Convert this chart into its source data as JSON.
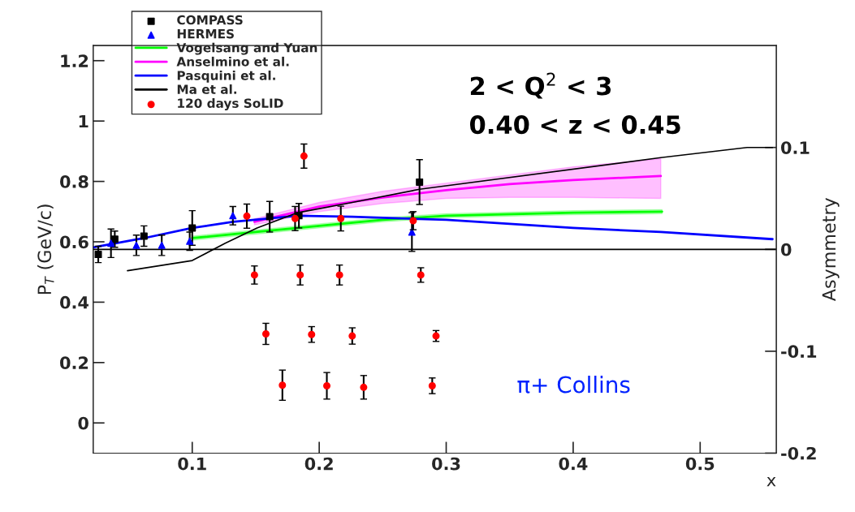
{
  "chart_data": {
    "type": "scatter",
    "xlabel": "x",
    "ylabel": "P$_{T}$ (GeV/c)",
    "y2label": "Asymmetry",
    "annotations": [
      "2 < Q$^{2}$ < 3",
      "0.40 < z < 0.45",
      "π+ Collins"
    ],
    "xlim": [
      0.022,
      0.56
    ],
    "xticks": [
      0.1,
      0.2,
      0.3,
      0.4,
      0.5
    ],
    "ylim": [
      -0.1,
      1.25
    ],
    "yticks": [
      0,
      0.2,
      0.4,
      0.6,
      0.8,
      1,
      1.2
    ],
    "y2lim": [
      -0.2,
      0.2
    ],
    "y2ticks": [
      -0.2,
      -0.1,
      0,
      0.1
    ],
    "grid": false,
    "legend": "top left",
    "ref_lines": [
      {
        "axis": "y2",
        "value": 0,
        "color": "#000000"
      }
    ],
    "series": [
      {
        "name": "COMPASS",
        "axis": "y2",
        "marker": "square",
        "color": "#000000",
        "x": [
          0.026,
          0.039,
          0.062,
          0.1,
          0.161,
          0.184,
          0.279
        ],
        "values": [
          -0.005,
          0.01,
          0.013,
          0.021,
          0.032,
          0.033,
          0.066
        ],
        "errors": [
          0.008,
          0.008,
          0.01,
          0.017,
          0.015,
          0.012,
          0.022
        ]
      },
      {
        "name": "HERMES",
        "axis": "y2",
        "marker": "triangle",
        "color": "#0000ff",
        "x": [
          0.036,
          0.056,
          0.076,
          0.098,
          0.132,
          0.273
        ],
        "values": [
          0.006,
          0.004,
          0.004,
          0.008,
          0.033,
          0.017
        ],
        "errors": [
          0.014,
          0.01,
          0.01,
          0.009,
          0.009,
          0.019
        ]
      },
      {
        "name": "Vogelsang and Yuan",
        "type": "line",
        "axis": "y2",
        "marker": "none",
        "color": "#00ff00",
        "x": [
          0.1,
          0.15,
          0.2,
          0.25,
          0.3,
          0.4,
          0.47
        ],
        "values": [
          0.011,
          0.017,
          0.023,
          0.029,
          0.033,
          0.036,
          0.037
        ],
        "lower": [
          0.009,
          0.015,
          0.021,
          0.027,
          0.031,
          0.034,
          0.035
        ],
        "upper": [
          0.013,
          0.019,
          0.025,
          0.031,
          0.035,
          0.038,
          0.039
        ]
      },
      {
        "name": "Anselmino et al.",
        "type": "line",
        "axis": "y2",
        "marker": "none",
        "color": "#ff00ff",
        "x": [
          0.149,
          0.2,
          0.25,
          0.3,
          0.35,
          0.4,
          0.469
        ],
        "values": [
          0.027,
          0.042,
          0.051,
          0.058,
          0.064,
          0.068,
          0.072
        ],
        "lower": [
          0.024,
          0.037,
          0.045,
          0.05,
          0.051,
          0.051,
          0.05
        ],
        "upper": [
          0.03,
          0.046,
          0.057,
          0.065,
          0.073,
          0.081,
          0.089
        ]
      },
      {
        "name": "Pasquini et al.",
        "type": "line",
        "axis": "y2",
        "marker": "none",
        "color": "#0000ff",
        "x": [
          0.022,
          0.062,
          0.1,
          0.132,
          0.183,
          0.226,
          0.3,
          0.4,
          0.469,
          0.557
        ],
        "values": [
          0.002,
          0.011,
          0.021,
          0.027,
          0.033,
          0.032,
          0.029,
          0.021,
          0.017,
          0.01
        ]
      },
      {
        "name": "Ma et al.",
        "type": "line",
        "axis": "y2",
        "marker": "none",
        "color": "#000000",
        "x": [
          0.049,
          0.1,
          0.126,
          0.151,
          0.183,
          0.226,
          0.279,
          0.469,
          0.537,
          0.557
        ],
        "values": [
          -0.021,
          -0.011,
          0.006,
          0.021,
          0.036,
          0.046,
          0.059,
          0.09,
          0.1,
          0.1
        ]
      },
      {
        "name": "120 days SoLID",
        "axis": "y",
        "marker": "circle",
        "color": "#ff0000",
        "x": [
          0.188,
          0.143,
          0.181,
          0.217,
          0.274,
          0.149,
          0.185,
          0.216,
          0.28,
          0.158,
          0.194,
          0.226,
          0.292,
          0.171,
          0.206,
          0.235,
          0.289
        ],
        "values": [
          0.884,
          0.685,
          0.677,
          0.677,
          0.67,
          0.49,
          0.49,
          0.49,
          0.49,
          0.295,
          0.293,
          0.288,
          0.288,
          0.125,
          0.123,
          0.118,
          0.123
        ],
        "errors": [
          0.04,
          0.04,
          0.04,
          0.041,
          0.03,
          0.03,
          0.033,
          0.033,
          0.024,
          0.035,
          0.026,
          0.027,
          0.018,
          0.05,
          0.044,
          0.039,
          0.026
        ]
      }
    ]
  }
}
